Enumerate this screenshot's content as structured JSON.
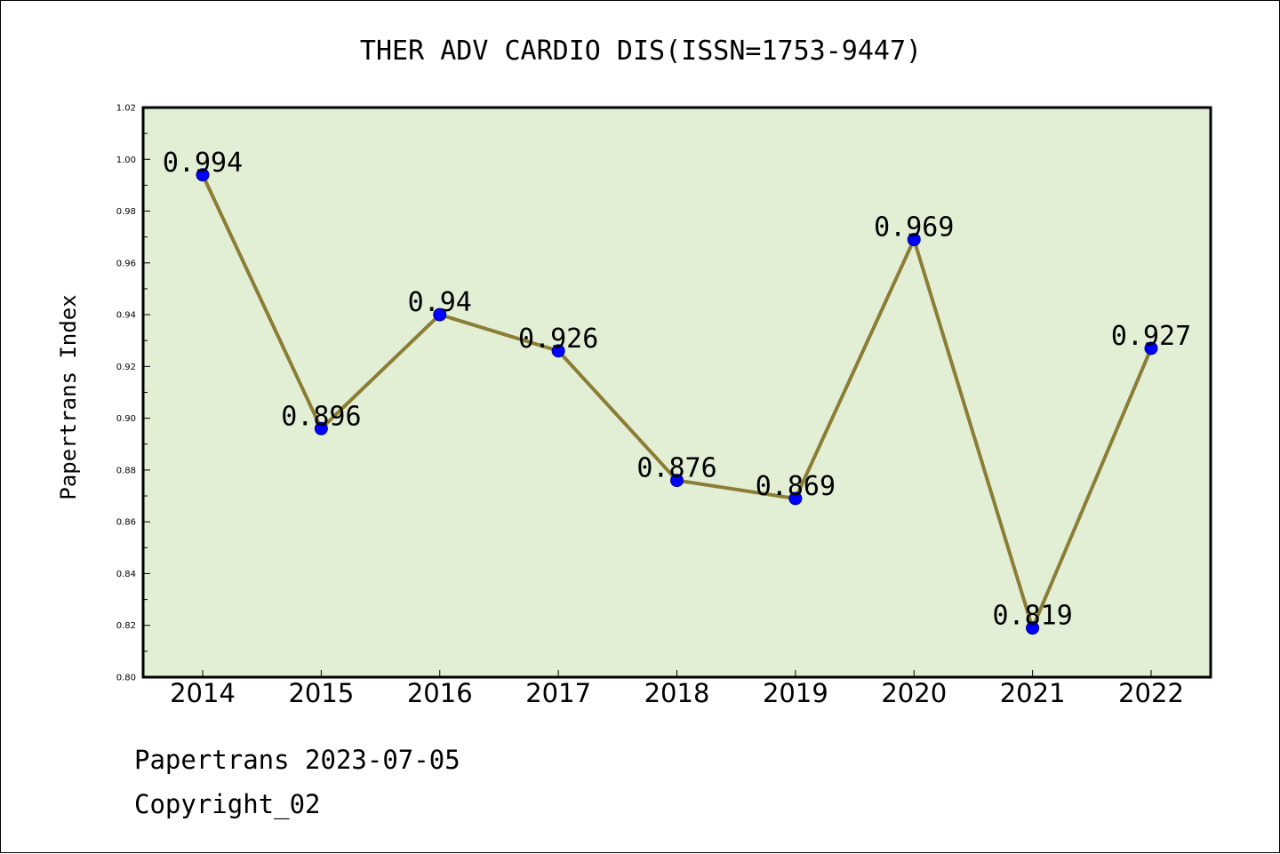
{
  "colors": {
    "plot_background": "#e2efd5",
    "line": "#8b7d35",
    "marker": "#0000ff",
    "marker_edge": "#00008b",
    "axes": "#000000"
  },
  "footer": {
    "line1": "Papertrans 2023-07-05",
    "line2": "Copyright_02"
  },
  "chart_data": {
    "type": "line",
    "title": "THER ADV CARDIO DIS(ISSN=1753-9447)",
    "xlabel": "",
    "ylabel": "Papertrans Index",
    "categories": [
      "2014",
      "2015",
      "2016",
      "2017",
      "2018",
      "2019",
      "2020",
      "2021",
      "2022"
    ],
    "values": [
      0.994,
      0.896,
      0.94,
      0.926,
      0.876,
      0.869,
      0.969,
      0.819,
      0.927
    ],
    "data_labels": [
      "0.994",
      "0.896",
      "0.94",
      "0.926",
      "0.876",
      "0.869",
      "0.969",
      "0.819",
      "0.927"
    ],
    "ylim": [
      0.8,
      1.02
    ],
    "yticks": [
      "0.80",
      "0.82",
      "0.84",
      "0.86",
      "0.88",
      "0.90",
      "0.92",
      "0.94",
      "0.96",
      "0.98",
      "1.00",
      "1.02"
    ],
    "ytick_values": [
      0.8,
      0.82,
      0.84,
      0.86,
      0.88,
      0.9,
      0.92,
      0.94,
      0.96,
      0.98,
      1.0,
      1.02
    ],
    "grid": false,
    "legend": "none"
  }
}
